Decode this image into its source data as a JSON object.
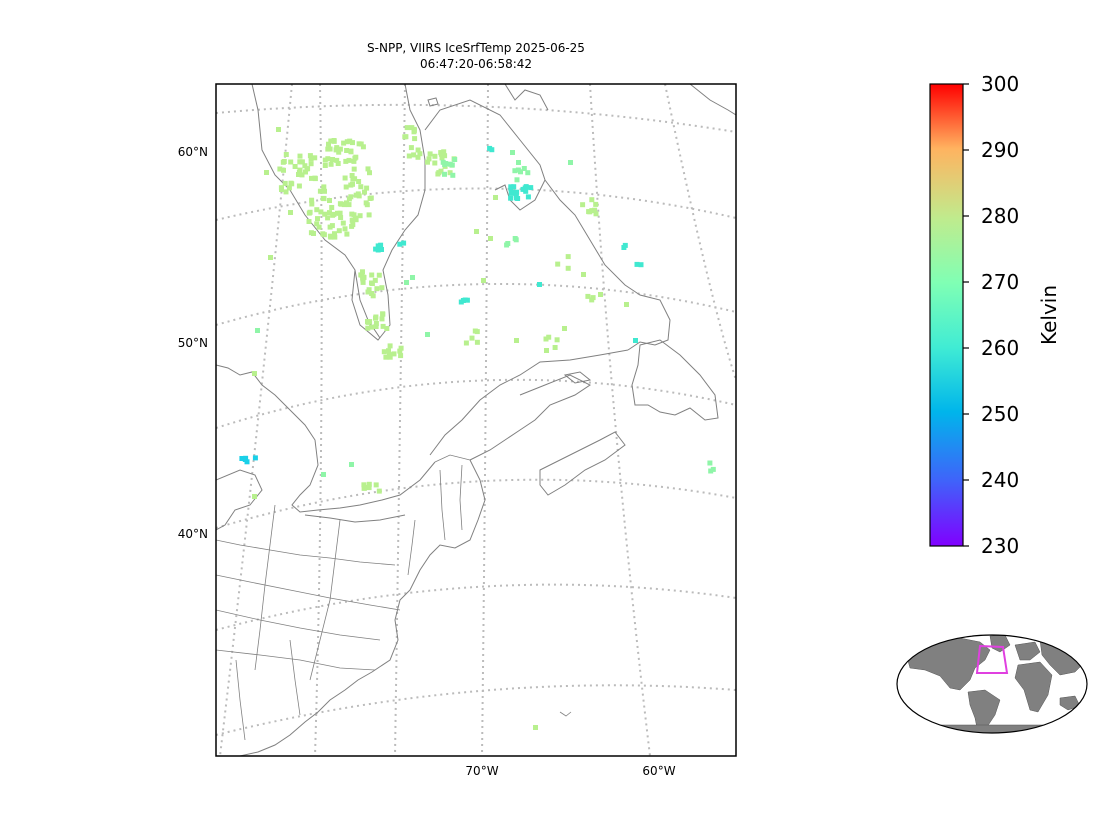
{
  "map": {
    "title_line1": "S-NPP, VIIRS IceSrfTemp 2025-06-25",
    "title_line2": "06:47:20-06:58:42",
    "lat_labels": [
      "60°N",
      "50°N",
      "40°N"
    ],
    "lon_labels": [
      "70°W",
      "60°W"
    ],
    "coastline_color": "#808080",
    "gridline_color": "#bbbbbb"
  },
  "colorbar": {
    "label": "Kelvin",
    "min": 230,
    "max": 300,
    "ticks": [
      "300",
      "290",
      "280",
      "270",
      "260",
      "250",
      "240",
      "230"
    ],
    "colormap": "rainbow"
  },
  "inset": {
    "land_color": "#808080",
    "box_color": "#e040e0"
  },
  "chart_data": {
    "type": "scatter",
    "title": "S-NPP, VIIRS IceSrfTemp 2025-06-25 06:47:20-06:58:42",
    "xlabel": "",
    "ylabel": "",
    "colorbar_label": "Kelvin",
    "colorbar_range": [
      230,
      300
    ]
  }
}
